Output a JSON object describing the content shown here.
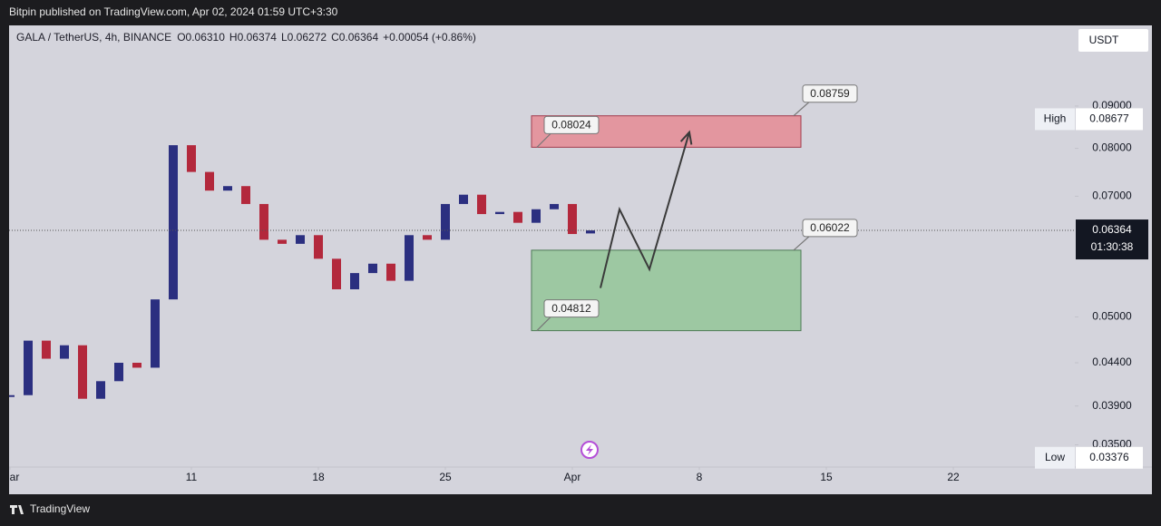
{
  "header": {
    "publisher": "Bitpin published on TradingView.com, Apr 02, 2024 01:59 UTC+3:30"
  },
  "legend": {
    "symbol": "GALA / TetherUS, 4h, BINANCE",
    "ohlc": [
      {
        "label": "O",
        "value": "0.06310"
      },
      {
        "label": "H",
        "value": "0.06374"
      },
      {
        "label": "L",
        "value": "0.06272"
      },
      {
        "label": "C",
        "value": "0.06364"
      }
    ],
    "change": "+0.00054 (+0.86%)"
  },
  "currency": "USDT",
  "chart_data": {
    "type": "candlestick",
    "x": [
      0,
      1,
      2,
      3,
      4,
      5,
      6,
      7,
      8,
      9,
      10,
      11,
      12,
      13,
      14,
      15,
      16,
      17,
      18,
      19,
      20,
      21,
      22,
      23,
      24,
      25,
      26,
      27,
      28,
      29,
      30,
      31,
      32
    ],
    "open": [
      0.04,
      0.0402,
      0.0468,
      0.0445,
      0.0462,
      0.0398,
      0.0418,
      0.044,
      0.0434,
      0.0525,
      0.0807,
      0.0749,
      0.0711,
      0.072,
      0.0685,
      0.062,
      0.0613,
      0.0628,
      0.0588,
      0.054,
      0.0565,
      0.058,
      0.0553,
      0.0628,
      0.062,
      0.0685,
      0.0703,
      0.0666,
      0.067,
      0.065,
      0.0675,
      0.0685,
      0.0631
    ],
    "high": {
      "label": "High",
      "value": 0.08677
    },
    "low": {
      "label": "Low",
      "value": 0.03376
    },
    "close": [
      0.0402,
      0.0468,
      0.0445,
      0.0462,
      0.0398,
      0.0418,
      0.044,
      0.0434,
      0.0525,
      0.0807,
      0.0749,
      0.0711,
      0.072,
      0.0685,
      0.062,
      0.0613,
      0.0628,
      0.0588,
      0.054,
      0.0565,
      0.058,
      0.0553,
      0.0628,
      0.062,
      0.0685,
      0.0703,
      0.0666,
      0.067,
      0.065,
      0.0675,
      0.0685,
      0.063,
      0.06364
    ],
    "up_color": "#2b2f80",
    "down_color": "#b3283c",
    "xlim": [
      -0.05,
      58.7
    ],
    "ylim": [
      0.0329,
      0.1127
    ],
    "log_scale": true,
    "grid": false,
    "xticks": [
      {
        "value": 0,
        "label": "Mar"
      },
      {
        "value": 10,
        "label": "11"
      },
      {
        "value": 17,
        "label": "18"
      },
      {
        "value": 24,
        "label": "25"
      },
      {
        "value": 31,
        "label": "Apr"
      },
      {
        "value": 38,
        "label": "8"
      },
      {
        "value": 45,
        "label": "15"
      },
      {
        "value": 52,
        "label": "22"
      }
    ],
    "yticks": [
      {
        "value": 0.09,
        "label": "0.09000"
      },
      {
        "value": 0.08,
        "label": "0.08000"
      },
      {
        "value": 0.07,
        "label": "0.07000"
      },
      {
        "value": 0.05,
        "label": "0.05000"
      },
      {
        "value": 0.044,
        "label": "0.04400"
      },
      {
        "value": 0.039,
        "label": "0.03900"
      },
      {
        "value": 0.035,
        "label": "0.03500"
      }
    ],
    "last_price": 0.06364,
    "countdown": "01:30:38",
    "zones": [
      {
        "from": 0.08024,
        "to": 0.08759,
        "x": [
          28.75,
          43.6
        ],
        "color": "#e3969f"
      },
      {
        "from": 0.04812,
        "to": 0.06022,
        "x": [
          28.75,
          43.6
        ],
        "color": "#9dc8a2"
      }
    ],
    "projection": {
      "x": [
        32.55,
        33.6,
        35.25,
        37.45
      ],
      "y": [
        0.0542,
        0.0675,
        0.0571,
        0.0837
      ],
      "color": "#3a3a3a"
    }
  },
  "footer": {
    "brand": "TradingView"
  }
}
